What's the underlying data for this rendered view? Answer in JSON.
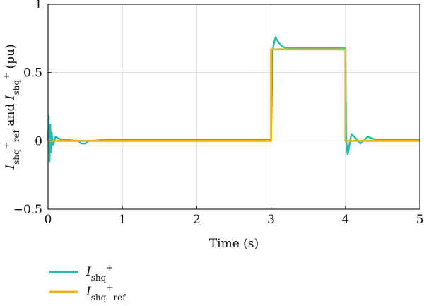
{
  "chart_data": {
    "type": "line",
    "xlabel": "Time (s)",
    "ylabel": {
      "parts": [
        {
          "text": "I",
          "italic": true
        },
        {
          "text": "shq",
          "shift": "sub"
        },
        {
          "text": "+",
          "shift": "super"
        },
        {
          "text": "ref",
          "shift": "sub"
        },
        {
          "text": " and ",
          "shift": "none"
        },
        {
          "text": "I",
          "italic": true
        },
        {
          "text": "shq",
          "shift": "sub"
        },
        {
          "text": "+",
          "shift": "super"
        },
        {
          "text": " (pu)",
          "shift": "none"
        }
      ]
    },
    "xlim": [
      0,
      5
    ],
    "ylim": [
      -0.5,
      1
    ],
    "xticks": [
      0,
      1,
      2,
      3,
      4,
      5
    ],
    "xtick_labels": [
      "0",
      "1",
      "2",
      "3",
      "4",
      "5"
    ],
    "yticks": [
      -0.5,
      0,
      0.5,
      1
    ],
    "ytick_labels": [
      "−0.5",
      "0",
      "0.5",
      "1"
    ],
    "grid": true,
    "legend_placement": "bottom-left, below plot",
    "series": [
      {
        "key": "meas",
        "legend": {
          "main": "I",
          "sub": "shq",
          "sup": "+",
          "sub2": ""
        },
        "color": "#1dbfb4",
        "x": [
          0,
          0.01,
          0.02,
          0.03,
          0.04,
          0.05,
          0.07,
          0.1,
          0.15,
          0.2,
          0.3,
          0.4,
          0.45,
          0.5,
          0.55,
          0.6,
          0.7,
          0.8,
          1.0,
          1.5,
          2.0,
          2.5,
          2.98,
          3.0,
          3.02,
          3.04,
          3.06,
          3.1,
          3.15,
          3.2,
          3.3,
          3.5,
          3.7,
          3.9,
          3.99,
          4.0,
          4.01,
          4.03,
          4.05,
          4.08,
          4.12,
          4.2,
          4.3,
          4.4,
          4.6,
          4.8,
          5.0
        ],
        "y": [
          0,
          0.18,
          -0.15,
          0.12,
          -0.08,
          0.06,
          -0.03,
          0.03,
          0.015,
          0.01,
          0.005,
          0.0,
          -0.02,
          -0.02,
          0.0,
          0.0,
          0.005,
          0.01,
          0.01,
          0.01,
          0.01,
          0.01,
          0.01,
          0.01,
          0.66,
          0.72,
          0.76,
          0.72,
          0.69,
          0.68,
          0.68,
          0.68,
          0.68,
          0.68,
          0.68,
          0.68,
          0.0,
          -0.1,
          -0.04,
          0.05,
          0.03,
          -0.02,
          0.03,
          0.01,
          0.01,
          0.01,
          0.01
        ]
      },
      {
        "key": "ref",
        "legend": {
          "main": "I",
          "sub": "shq",
          "sup": "+",
          "sub2": "ref"
        },
        "color": "#e9b320",
        "x": [
          0,
          3.0,
          3.0,
          4.0,
          4.0,
          5.0
        ],
        "y": [
          0,
          0,
          0.67,
          0.67,
          0,
          0
        ]
      }
    ]
  }
}
